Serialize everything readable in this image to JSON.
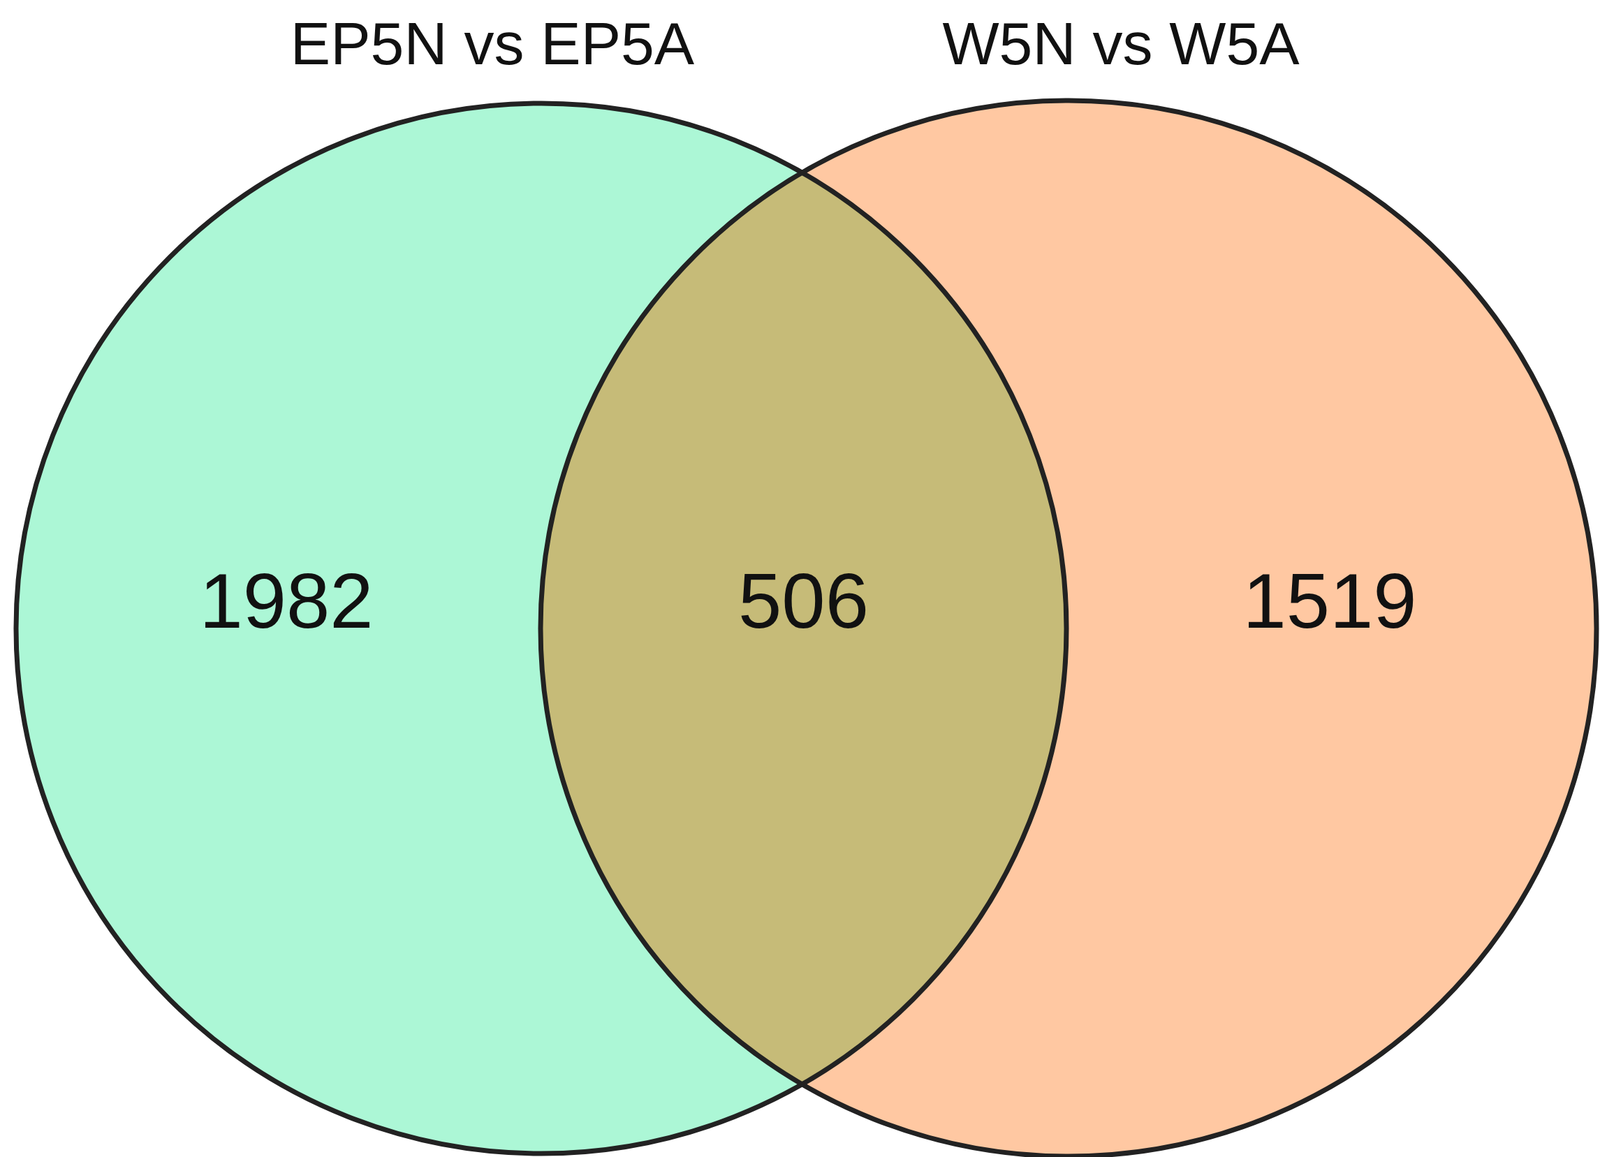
{
  "chart_data": {
    "type": "other",
    "categories": [
      "EP5N vs EP5A",
      null,
      "W5N vs W5A"
    ],
    "values": [
      1982,
      506,
      1519
    ],
    "data_labels": true,
    "colors": [
      "#acf7d6",
      "#c6bb78",
      "#ffc8a2"
    ]
  }
}
